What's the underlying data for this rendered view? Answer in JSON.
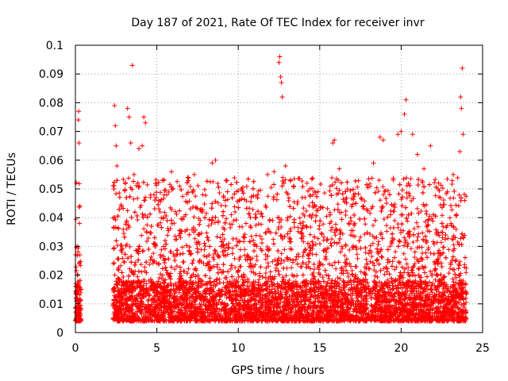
{
  "chart_data": {
    "type": "scatter",
    "title": "Day 187 of 2021, Rate Of TEC Index for receiver invr",
    "xlabel": "GPS time / hours",
    "ylabel": "ROTI / TECUs",
    "xlim": [
      0,
      25
    ],
    "ylim": [
      0,
      0.1
    ],
    "x_ticks": [
      0,
      5,
      10,
      15,
      20,
      25
    ],
    "x_tick_labels": [
      "0",
      "5",
      "10",
      "15",
      "20",
      "25"
    ],
    "y_ticks": [
      0,
      0.01,
      0.02,
      0.03,
      0.04,
      0.05,
      0.06,
      0.07,
      0.08,
      0.09,
      0.1
    ],
    "y_tick_labels": [
      "0",
      "0.01",
      "0.02",
      "0.03",
      "0.04",
      "0.05",
      "0.06",
      "0.07",
      "0.08",
      "0.09",
      "0.1"
    ],
    "grid": true,
    "marker": "+",
    "series": [
      {
        "name": "ROTI",
        "color": "#ff0000",
        "segments_hours": [
          [
            0.0,
            0.35
          ],
          [
            2.3,
            24.0
          ]
        ],
        "points": [
          [
            0.05,
            0.005
          ],
          [
            0.1,
            0.012
          ],
          [
            0.12,
            0.02
          ],
          [
            0.15,
            0.03
          ],
          [
            0.18,
            0.074
          ],
          [
            0.2,
            0.077
          ],
          [
            0.22,
            0.066
          ],
          [
            0.25,
            0.038
          ],
          [
            0.28,
            0.044
          ],
          [
            2.4,
            0.079
          ],
          [
            2.45,
            0.072
          ],
          [
            2.5,
            0.065
          ],
          [
            2.55,
            0.058
          ],
          [
            3.2,
            0.078
          ],
          [
            3.3,
            0.075
          ],
          [
            3.5,
            0.093
          ],
          [
            3.4,
            0.066
          ],
          [
            3.6,
            0.055
          ],
          [
            3.9,
            0.064
          ],
          [
            4.1,
            0.065
          ],
          [
            4.2,
            0.075
          ],
          [
            4.3,
            0.073
          ],
          [
            4.6,
            0.047
          ],
          [
            5.2,
            0.042
          ],
          [
            5.4,
            0.04
          ],
          [
            5.9,
            0.056
          ],
          [
            6.4,
            0.051
          ],
          [
            6.9,
            0.054
          ],
          [
            7.3,
            0.055
          ],
          [
            7.8,
            0.042
          ],
          [
            8.4,
            0.059
          ],
          [
            8.6,
            0.06
          ],
          [
            9.2,
            0.046
          ],
          [
            9.8,
            0.042
          ],
          [
            10.2,
            0.05
          ],
          [
            11.2,
            0.048
          ],
          [
            11.8,
            0.055
          ],
          [
            12.2,
            0.056
          ],
          [
            12.5,
            0.094
          ],
          [
            12.55,
            0.096
          ],
          [
            12.6,
            0.089
          ],
          [
            12.65,
            0.087
          ],
          [
            12.7,
            0.082
          ],
          [
            12.9,
            0.058
          ],
          [
            13.4,
            0.051
          ],
          [
            14.1,
            0.047
          ],
          [
            14.5,
            0.04
          ],
          [
            14.9,
            0.049
          ],
          [
            15.8,
            0.066
          ],
          [
            15.9,
            0.067
          ],
          [
            16.2,
            0.057
          ],
          [
            16.7,
            0.05
          ],
          [
            17.2,
            0.045
          ],
          [
            18.3,
            0.059
          ],
          [
            18.7,
            0.068
          ],
          [
            18.9,
            0.067
          ],
          [
            19.8,
            0.069
          ],
          [
            20.0,
            0.07
          ],
          [
            20.2,
            0.076
          ],
          [
            20.3,
            0.081
          ],
          [
            20.7,
            0.069
          ],
          [
            21.0,
            0.062
          ],
          [
            21.4,
            0.057
          ],
          [
            21.8,
            0.065
          ],
          [
            22.3,
            0.052
          ],
          [
            23.2,
            0.055
          ],
          [
            23.6,
            0.063
          ],
          [
            23.65,
            0.082
          ],
          [
            23.7,
            0.078
          ],
          [
            23.75,
            0.092
          ],
          [
            23.8,
            0.069
          ],
          [
            23.9,
            0.046
          ],
          [
            0.08,
            0.0075
          ],
          [
            0.13,
            0.0155
          ],
          [
            0.24,
            0.024
          ],
          [
            2.6,
            0.011
          ],
          [
            3.0,
            0.014
          ],
          [
            3.8,
            0.009
          ],
          [
            4.5,
            0.018
          ],
          [
            5.5,
            0.012
          ],
          [
            6.2,
            0.016
          ],
          [
            7.0,
            0.01
          ],
          [
            7.6,
            0.013
          ],
          [
            8.2,
            0.009
          ],
          [
            9.0,
            0.015
          ],
          [
            9.6,
            0.011
          ],
          [
            10.4,
            0.013
          ],
          [
            11.0,
            0.008
          ],
          [
            11.6,
            0.017
          ],
          [
            12.3,
            0.012
          ],
          [
            13.0,
            0.006
          ],
          [
            13.6,
            0.014
          ],
          [
            14.3,
            0.009
          ],
          [
            15.0,
            0.011
          ],
          [
            15.6,
            0.016
          ],
          [
            16.4,
            0.01
          ],
          [
            17.0,
            0.013
          ],
          [
            17.8,
            0.012
          ],
          [
            18.4,
            0.015
          ],
          [
            19.2,
            0.011
          ],
          [
            19.9,
            0.018
          ],
          [
            20.5,
            0.013
          ],
          [
            21.2,
            0.01
          ],
          [
            21.9,
            0.014
          ],
          [
            22.6,
            0.009
          ],
          [
            23.3,
            0.012
          ],
          [
            23.95,
            0.007
          ]
        ]
      }
    ]
  }
}
